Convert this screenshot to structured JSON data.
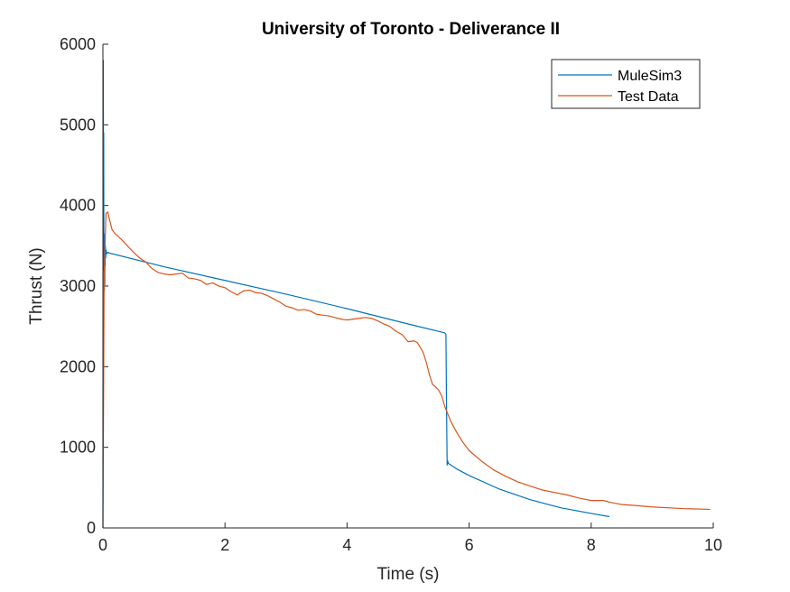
{
  "chart_data": {
    "type": "line",
    "title": "University of Toronto - Deliverance II",
    "xlabel": "Time (s)",
    "ylabel": "Thrust (N)",
    "xlim": [
      0,
      10
    ],
    "ylim": [
      0,
      6000
    ],
    "xticks": [
      0,
      2,
      4,
      6,
      8,
      10
    ],
    "yticks": [
      0,
      1000,
      2000,
      3000,
      4000,
      5000,
      6000
    ],
    "xtick_labels": [
      "0",
      "2",
      "4",
      "6",
      "8",
      "10"
    ],
    "ytick_labels": [
      "0",
      "1000",
      "2000",
      "3000",
      "4000",
      "5000",
      "6000"
    ],
    "grid": false,
    "legend_position": "top-right",
    "series": [
      {
        "name": "MuleSim3",
        "color": "#0072BD",
        "x": [
          0,
          0.003,
          0.006,
          0.01,
          0.013,
          0.016,
          0.02,
          0.023,
          0.026,
          0.03,
          0.033,
          0.036,
          0.04,
          0.045,
          0.05,
          0.06,
          0.08,
          0.1,
          1.0,
          2.0,
          3.0,
          4.0,
          5.0,
          5.6,
          5.62,
          5.63,
          5.64,
          5.65,
          5.66,
          5.8,
          6.0,
          6.5,
          7.0,
          7.5,
          8.0,
          8.3
        ],
        "y": [
          0,
          4000,
          5800,
          4200,
          4900,
          3200,
          3650,
          2950,
          3550,
          3000,
          3450,
          3250,
          3500,
          3350,
          3450,
          3400,
          3420,
          3410,
          3240,
          3070,
          2900,
          2720,
          2530,
          2420,
          2400,
          1500,
          780,
          830,
          800,
          730,
          650,
          480,
          350,
          250,
          180,
          140
        ]
      },
      {
        "name": "Test Data",
        "color": "#D95319",
        "x": [
          0,
          0.02,
          0.05,
          0.08,
          0.1,
          0.15,
          0.2,
          0.3,
          0.4,
          0.5,
          0.6,
          0.7,
          0.8,
          0.9,
          1.0,
          1.1,
          1.2,
          1.3,
          1.4,
          1.5,
          1.6,
          1.7,
          1.8,
          1.9,
          2.0,
          2.1,
          2.2,
          2.3,
          2.4,
          2.5,
          2.6,
          2.7,
          2.8,
          2.9,
          3.0,
          3.1,
          3.2,
          3.3,
          3.4,
          3.5,
          3.6,
          3.7,
          3.8,
          3.9,
          4.0,
          4.1,
          4.2,
          4.3,
          4.4,
          4.5,
          4.6,
          4.7,
          4.8,
          4.9,
          5.0,
          5.1,
          5.15,
          5.2,
          5.25,
          5.3,
          5.35,
          5.4,
          5.45,
          5.5,
          5.55,
          5.6,
          5.7,
          5.8,
          5.9,
          6.0,
          6.2,
          6.4,
          6.6,
          6.8,
          7.0,
          7.2,
          7.4,
          7.6,
          7.8,
          8.0,
          8.1,
          8.2,
          8.3,
          8.5,
          8.7,
          9.0,
          9.5,
          9.95
        ],
        "y": [
          0,
          3100,
          3900,
          3920,
          3850,
          3700,
          3650,
          3580,
          3500,
          3420,
          3350,
          3300,
          3220,
          3170,
          3150,
          3140,
          3150,
          3160,
          3100,
          3090,
          3070,
          3020,
          3040,
          3000,
          2980,
          2930,
          2890,
          2940,
          2950,
          2920,
          2910,
          2880,
          2840,
          2800,
          2750,
          2730,
          2700,
          2710,
          2690,
          2650,
          2640,
          2630,
          2610,
          2590,
          2580,
          2590,
          2600,
          2610,
          2600,
          2570,
          2530,
          2500,
          2440,
          2400,
          2310,
          2320,
          2300,
          2240,
          2170,
          2050,
          1900,
          1780,
          1750,
          1710,
          1640,
          1510,
          1320,
          1180,
          1060,
          960,
          830,
          720,
          640,
          570,
          520,
          470,
          440,
          410,
          370,
          340,
          340,
          340,
          320,
          290,
          280,
          260,
          240,
          230
        ]
      }
    ]
  }
}
